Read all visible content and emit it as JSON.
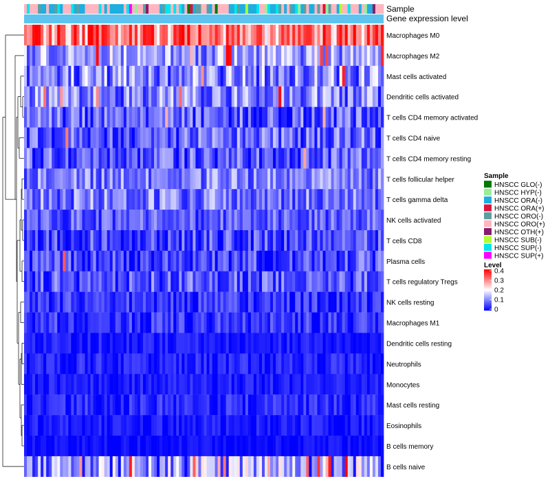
{
  "chart_data": {
    "type": "heatmap",
    "title": "",
    "annotation_labels": {
      "sample": "Sample",
      "gene_expression": "Gene expression level"
    },
    "rows": [
      {
        "label": "Macrophages M0",
        "mean": 0.3,
        "spread": 0.12,
        "hot_prob": 0.35
      },
      {
        "label": "Macrophages M2",
        "mean": 0.13,
        "spread": 0.09,
        "hot_prob": 0.05
      },
      {
        "label": "Mast cells activated",
        "mean": 0.11,
        "spread": 0.1,
        "hot_prob": 0.03
      },
      {
        "label": "Dendritic cells activated",
        "mean": 0.1,
        "spread": 0.09,
        "hot_prob": 0.04
      },
      {
        "label": "T cells CD4 memory activated",
        "mean": 0.07,
        "spread": 0.08,
        "hot_prob": 0.02
      },
      {
        "label": "T cells CD4 naive",
        "mean": 0.08,
        "spread": 0.08,
        "hot_prob": 0.01
      },
      {
        "label": "T cells CD4 memory resting",
        "mean": 0.07,
        "spread": 0.09,
        "hot_prob": 0.01
      },
      {
        "label": "T cells follicular helper",
        "mean": 0.1,
        "spread": 0.07,
        "hot_prob": 0.0
      },
      {
        "label": "T cells gamma delta",
        "mean": 0.1,
        "spread": 0.08,
        "hot_prob": 0.0
      },
      {
        "label": "NK cells activated",
        "mean": 0.07,
        "spread": 0.06,
        "hot_prob": 0.0
      },
      {
        "label": "T cells CD8",
        "mean": 0.06,
        "spread": 0.07,
        "hot_prob": 0.0
      },
      {
        "label": "Plasma cells",
        "mean": 0.06,
        "spread": 0.07,
        "hot_prob": 0.01
      },
      {
        "label": "T cells regulatory  Tregs",
        "mean": 0.07,
        "spread": 0.07,
        "hot_prob": 0.0
      },
      {
        "label": "NK cells resting",
        "mean": 0.04,
        "spread": 0.05,
        "hot_prob": 0.0
      },
      {
        "label": "Macrophages M1",
        "mean": 0.04,
        "spread": 0.05,
        "hot_prob": 0.0
      },
      {
        "label": "Dendritic cells resting",
        "mean": 0.02,
        "spread": 0.03,
        "hot_prob": 0.0
      },
      {
        "label": "Neutrophils",
        "mean": 0.02,
        "spread": 0.04,
        "hot_prob": 0.0
      },
      {
        "label": "Monocytes",
        "mean": 0.02,
        "spread": 0.03,
        "hot_prob": 0.0
      },
      {
        "label": "Mast cells resting",
        "mean": 0.03,
        "spread": 0.04,
        "hot_prob": 0.0
      },
      {
        "label": "Eosinophils",
        "mean": 0.02,
        "spread": 0.03,
        "hot_prob": 0.0
      },
      {
        "label": "B cells memory",
        "mean": 0.01,
        "spread": 0.02,
        "hot_prob": 0.0
      },
      {
        "label": "B cells naive",
        "mean": 0.12,
        "spread": 0.12,
        "hot_prob": 0.08
      }
    ],
    "n_samples": 130,
    "value_range": [
      0,
      0.4
    ],
    "sample_legend": {
      "title": "Sample",
      "groups": [
        {
          "label": "HNSCC GLO(-)",
          "color": "#007a00"
        },
        {
          "label": "HNSCC HYP(-)",
          "color": "#99ee99"
        },
        {
          "label": "HNSCC ORA(-)",
          "color": "#1eaee0"
        },
        {
          "label": "HNSCC ORA(+)",
          "color": "#dc143c"
        },
        {
          "label": "HNSCC ORO(-)",
          "color": "#5f9ea0"
        },
        {
          "label": "HNSCC ORO(+)",
          "color": "#ffb6c1"
        },
        {
          "label": "HNSCC OTH(+)",
          "color": "#8b1a6b"
        },
        {
          "label": "HNSCC SUB(-)",
          "color": "#adff2f"
        },
        {
          "label": "HNSCC SUP(-)",
          "color": "#00e5ee"
        },
        {
          "label": "HNSCC SUP(+)",
          "color": "#ff00ff"
        }
      ]
    },
    "level_legend": {
      "title": "Level",
      "ticks": [
        "0.4",
        "0.3",
        "0.2",
        "0.1",
        "0"
      ],
      "tick_values": [
        0.4,
        0.3,
        0.2,
        0.1,
        0
      ]
    },
    "colors": {
      "low": "#0000ff",
      "mid": "#ffffff",
      "high": "#ff0000",
      "expression_bar": "#5ec4ef"
    }
  }
}
